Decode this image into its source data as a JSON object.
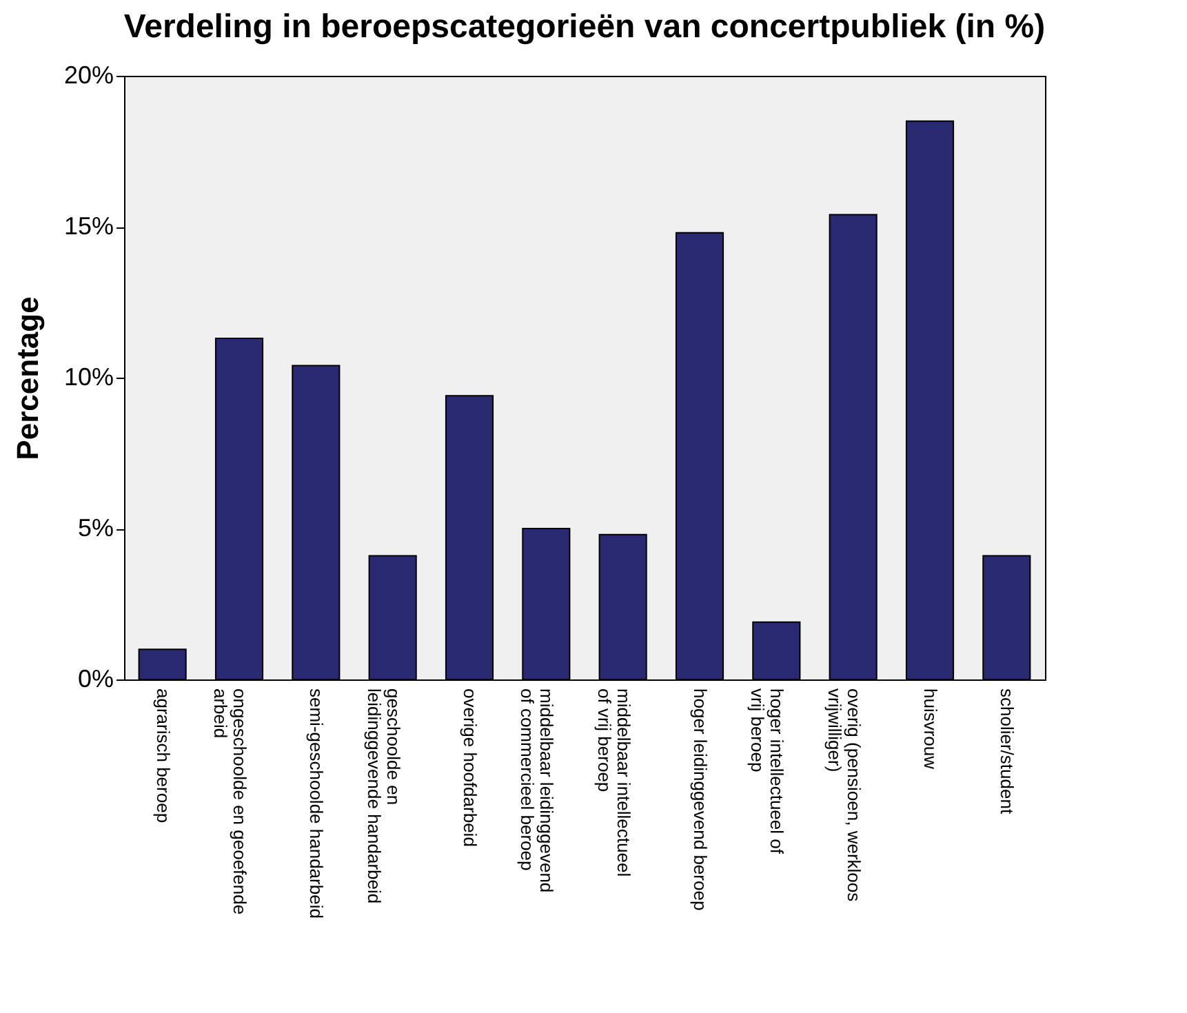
{
  "chart_data": {
    "type": "bar",
    "title": "Verdeling in beroepscategorieën van concertpubliek (in %)",
    "ylabel": "Percentage",
    "categories": [
      "agrarisch beroep",
      "ongeschoolde en geoefende arbeid",
      "semi-geschoolde handarbeid",
      "geschoolde en leidinggevende handarbeid",
      "overige hoofdarbeid",
      "middelbaar leidinggevend of commercieel beroep",
      "middelbaar intellectueel of vrij beroep",
      "hoger leidinggevend beroep",
      "hoger intellectueel of vrij beroep",
      "overig (pensioen, werkloos vrijwilliger)",
      "huisvrouw",
      "scholier/student"
    ],
    "values": [
      1.0,
      11.3,
      10.4,
      4.1,
      9.4,
      5.0,
      4.8,
      14.8,
      1.9,
      15.4,
      18.5,
      4.1
    ],
    "color": "#2a2a72",
    "ylim": [
      0,
      20
    ],
    "yticks": [
      {
        "value": 0,
        "label": "0%"
      },
      {
        "value": 5,
        "label": "5%"
      },
      {
        "value": 10,
        "label": "10%"
      },
      {
        "value": 15,
        "label": "15%"
      },
      {
        "value": 20,
        "label": "20%"
      }
    ],
    "grid": false
  }
}
